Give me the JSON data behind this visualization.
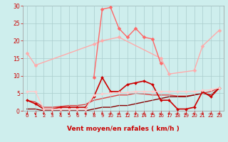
{
  "title": "",
  "xlabel": "Vent moyen/en rafales ( km/h )",
  "ylabel": "",
  "background_color": "#ceeeed",
  "grid_color": "#aacccc",
  "xlim": [
    -0.5,
    23.5
  ],
  "ylim": [
    0,
    30
  ],
  "yticks": [
    0,
    5,
    10,
    15,
    20,
    25,
    30
  ],
  "xticks": [
    0,
    1,
    2,
    3,
    4,
    5,
    6,
    7,
    8,
    9,
    10,
    11,
    12,
    13,
    14,
    15,
    16,
    17,
    18,
    19,
    20,
    21,
    22,
    23
  ],
  "series": [
    {
      "x": [
        0,
        1,
        8,
        9,
        11,
        16,
        17,
        20,
        21,
        23
      ],
      "y": [
        16.5,
        13,
        19,
        20,
        21,
        15,
        10.5,
        11.5,
        18.5,
        23
      ],
      "color": "#ffaaaa",
      "linewidth": 1.0,
      "marker": "D",
      "markersize": 2.5
    },
    {
      "x": [
        8,
        9,
        10,
        11,
        12,
        13,
        14,
        15,
        16
      ],
      "y": [
        9.5,
        29,
        29.5,
        23.5,
        21,
        23.5,
        21,
        20.5,
        13.5
      ],
      "color": "#ff6666",
      "linewidth": 1.0,
      "marker": "D",
      "markersize": 2.5
    },
    {
      "x": [
        0,
        1,
        2,
        3,
        4,
        5,
        6,
        7,
        8,
        9,
        10,
        11,
        12,
        13,
        14,
        15,
        16,
        17,
        18,
        19,
        20,
        21,
        22,
        23
      ],
      "y": [
        3,
        2,
        0.5,
        0.5,
        1,
        1,
        1,
        1,
        4,
        9.5,
        5.5,
        5.5,
        7.5,
        8,
        8.5,
        7.5,
        3,
        3,
        0.5,
        0.5,
        1,
        5.5,
        4,
        6.5
      ],
      "color": "#cc0000",
      "linewidth": 1.2,
      "marker": "D",
      "markersize": 2.0
    },
    {
      "x": [
        0,
        1,
        2,
        3,
        4,
        5,
        6,
        7,
        8,
        9,
        10,
        11,
        12,
        13,
        14,
        15,
        16,
        17,
        18,
        19,
        20,
        21,
        22,
        23
      ],
      "y": [
        3.0,
        2.5,
        1.0,
        1.0,
        1.2,
        1.5,
        1.5,
        1.8,
        3.0,
        3.5,
        4.0,
        4.5,
        4.5,
        5.0,
        4.8,
        4.5,
        4.5,
        4.5,
        4.2,
        4.2,
        4.5,
        5.0,
        5.5,
        6.5
      ],
      "color": "#dd4444",
      "linewidth": 1.0,
      "marker": null,
      "markersize": 0
    },
    {
      "x": [
        0,
        1,
        2,
        3,
        4,
        5,
        6,
        7,
        8,
        9,
        10,
        11,
        12,
        13,
        14,
        15,
        16,
        17,
        18,
        19,
        20,
        21,
        22,
        23
      ],
      "y": [
        5.5,
        5.5,
        0.5,
        0.5,
        0.5,
        0.5,
        0.5,
        0.5,
        4.5,
        4.8,
        5.0,
        5.2,
        5.2,
        5.5,
        5.5,
        5.5,
        5.5,
        5.5,
        5.5,
        5.5,
        5.5,
        5.8,
        6.0,
        6.5
      ],
      "color": "#ffcccc",
      "linewidth": 1.0,
      "marker": "D",
      "markersize": 2.0
    },
    {
      "x": [
        0,
        1,
        2,
        3,
        4,
        5,
        6,
        7,
        8,
        9,
        10,
        11,
        12,
        13,
        14,
        15,
        16,
        17,
        18,
        19,
        20,
        21,
        22,
        23
      ],
      "y": [
        0.5,
        0.5,
        0.0,
        0.0,
        0.0,
        0.0,
        0.0,
        0.0,
        0.5,
        1.0,
        1.0,
        1.5,
        1.5,
        2.0,
        2.5,
        3.0,
        3.5,
        4.0,
        4.0,
        4.0,
        4.5,
        5.0,
        4.5,
        6.5
      ],
      "color": "#880000",
      "linewidth": 1.0,
      "marker": null,
      "markersize": 0
    }
  ],
  "xlabel_color": "#cc0000",
  "tick_color": "#cc0000",
  "xlabel_fontsize": 6.5,
  "xtick_fontsize": 5.0,
  "ytick_fontsize": 5.5
}
